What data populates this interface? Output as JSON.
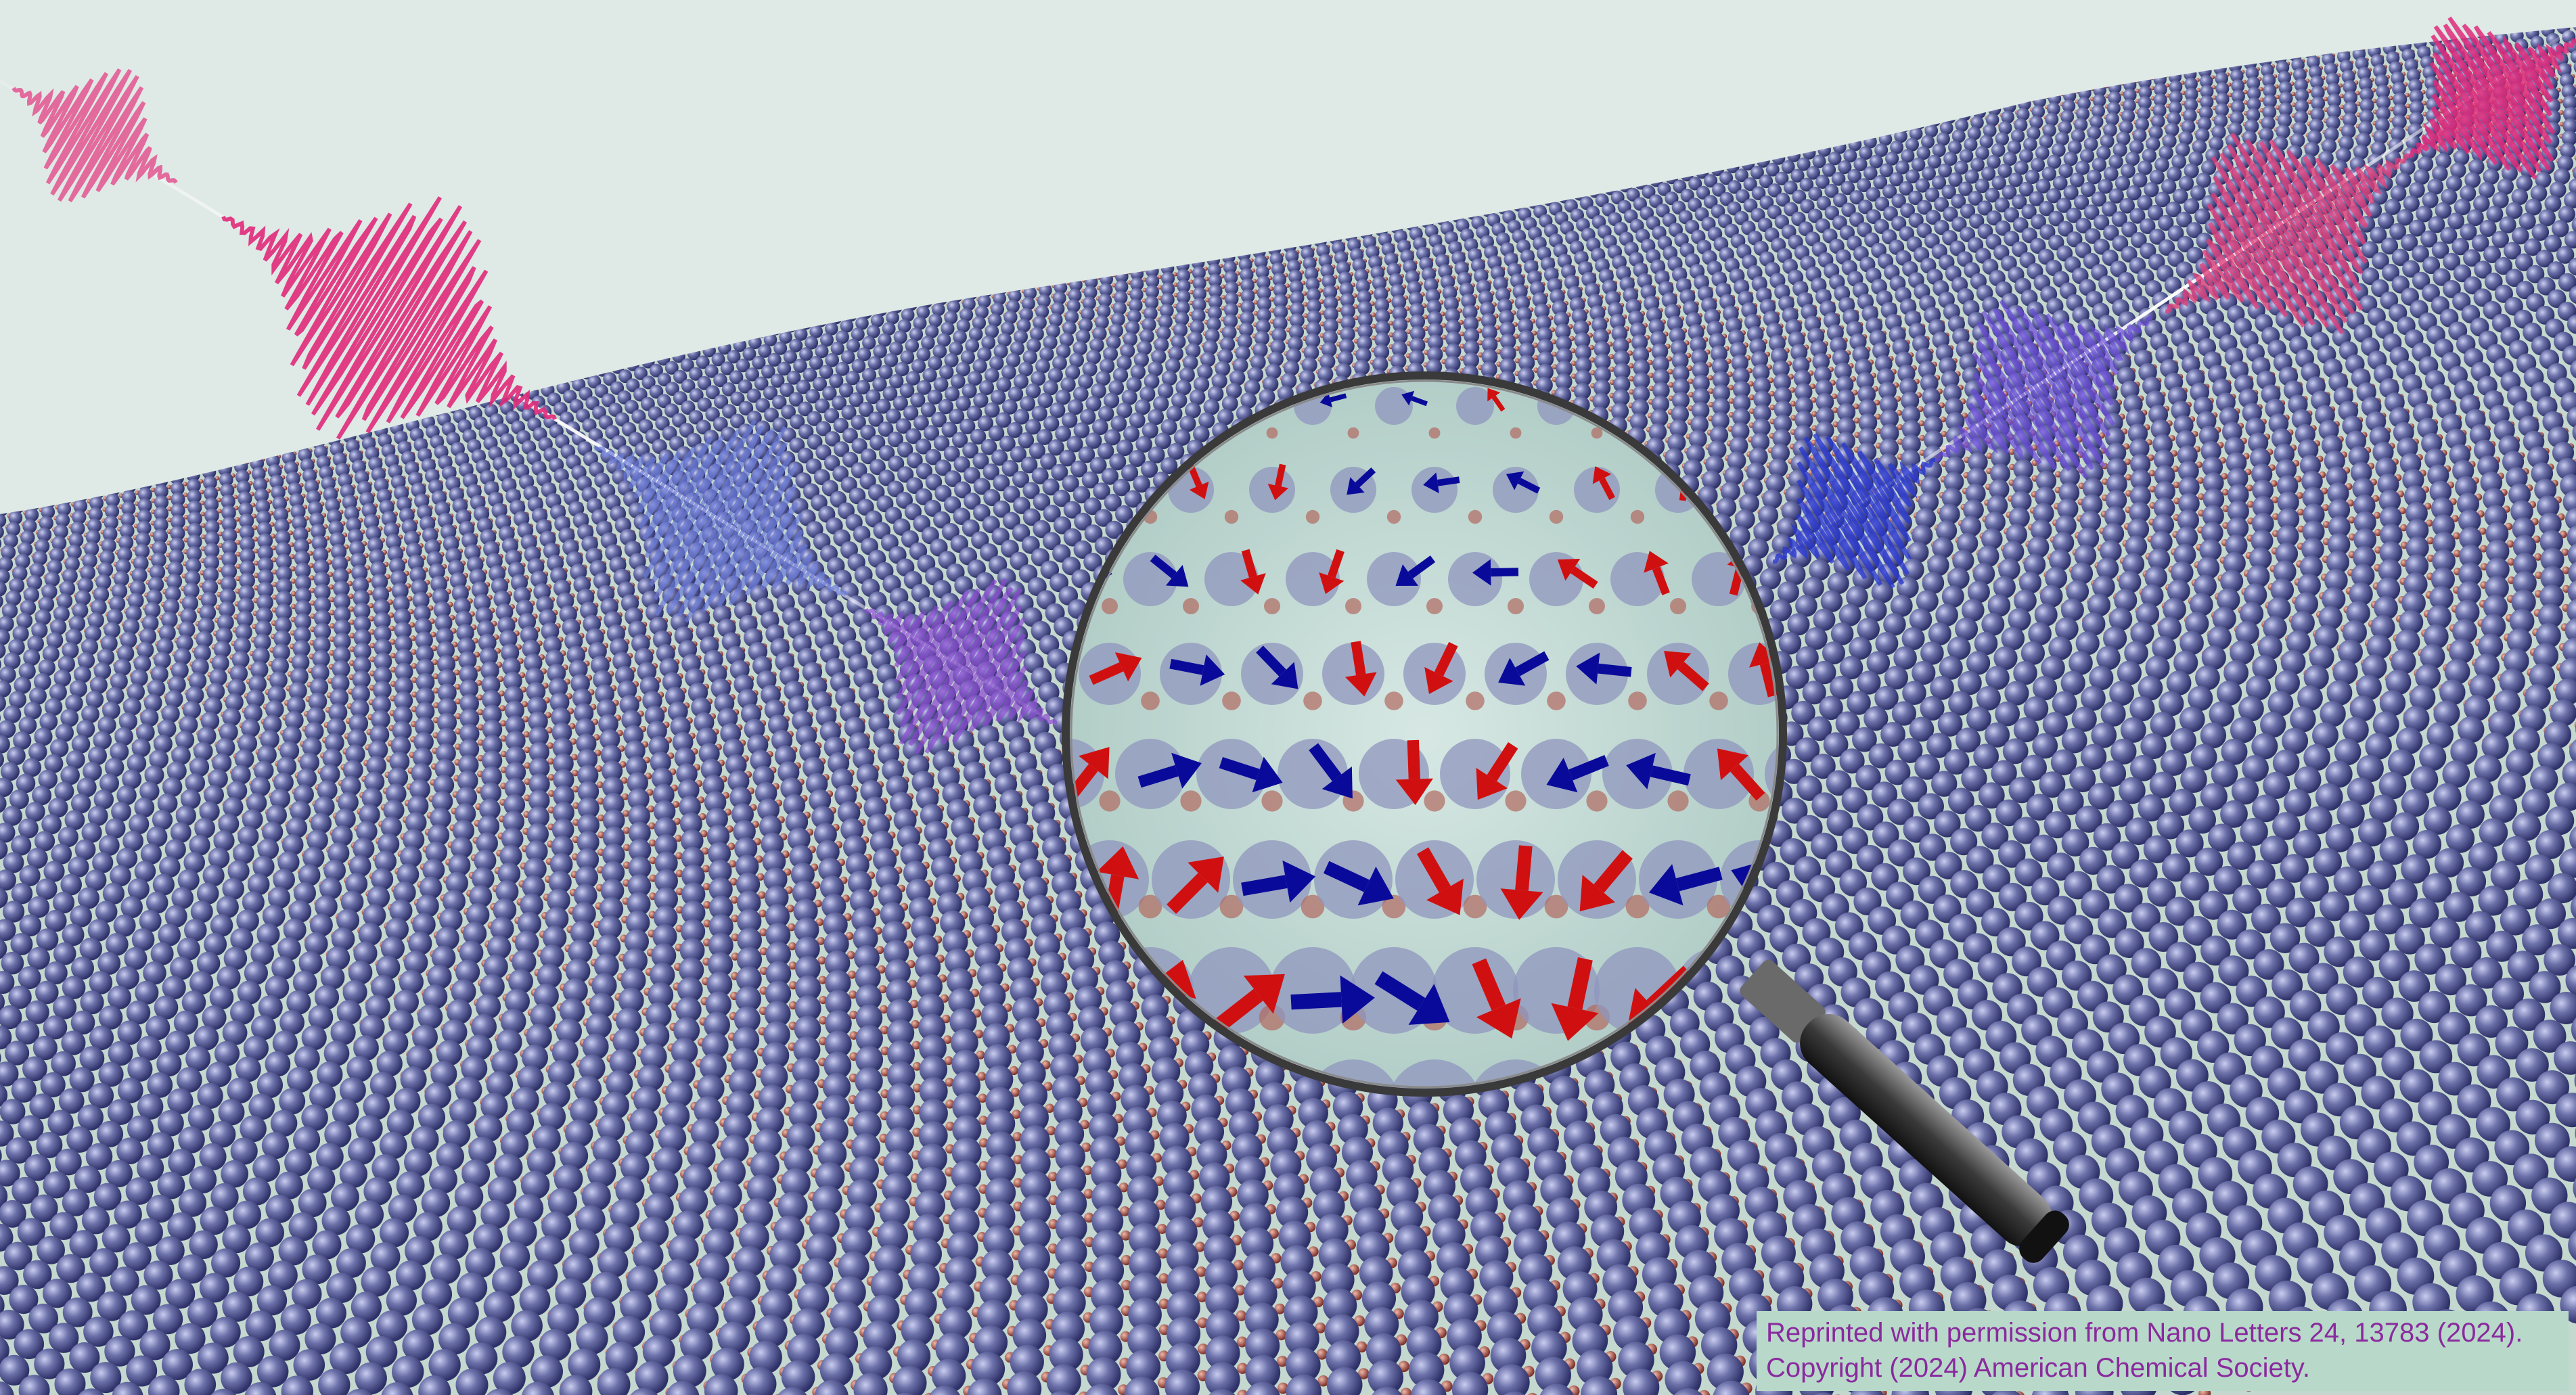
{
  "credit": {
    "line1": "Reprinted with permission from Nano Letters 24, 13783 (2024).",
    "line2": "Copyright (2024) American Chemical Society."
  },
  "colors": {
    "sky": "#dfe9e6",
    "lattice_base": "#c7dbd2",
    "atom_large": "#5a5f9a",
    "atom_small": "#a4524a",
    "pulse_pink": "#e02a7a",
    "pulse_blue": "#3b4fd6",
    "arrow_red": "#d01010",
    "arrow_blue": "#0a0a9a",
    "lens_rim": "#333333",
    "handle": "#2a2a2a",
    "credit_bg": "#b8d9c9",
    "credit_text": "#8a2a9e"
  },
  "icons": [
    "magnifying-glass-icon",
    "spin-arrow-icon",
    "laser-pulse-icon"
  ]
}
